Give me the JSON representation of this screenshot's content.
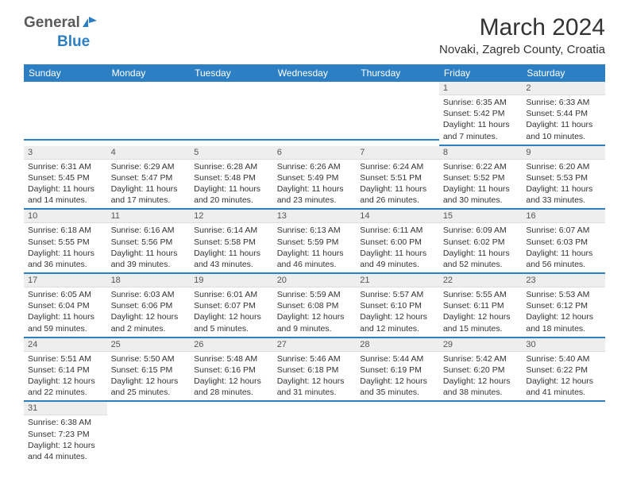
{
  "logo": {
    "part1": "General",
    "part2": "Blue"
  },
  "title": "March 2024",
  "location": "Novaki, Zagreb County, Croatia",
  "columns": [
    "Sunday",
    "Monday",
    "Tuesday",
    "Wednesday",
    "Thursday",
    "Friday",
    "Saturday"
  ],
  "colors": {
    "header_bg": "#2d7fc4",
    "header_text": "#ffffff",
    "daynum_bg": "#eeeeee",
    "cell_border": "#2d7fc4",
    "logo_gray": "#5a5a5a",
    "logo_blue": "#2d7fc4"
  },
  "weeks": [
    [
      null,
      null,
      null,
      null,
      null,
      {
        "num": "1",
        "sunrise": "6:35 AM",
        "sunset": "5:42 PM",
        "daylight": "11 hours and 7 minutes."
      },
      {
        "num": "2",
        "sunrise": "6:33 AM",
        "sunset": "5:44 PM",
        "daylight": "11 hours and 10 minutes."
      }
    ],
    [
      {
        "num": "3",
        "sunrise": "6:31 AM",
        "sunset": "5:45 PM",
        "daylight": "11 hours and 14 minutes."
      },
      {
        "num": "4",
        "sunrise": "6:29 AM",
        "sunset": "5:47 PM",
        "daylight": "11 hours and 17 minutes."
      },
      {
        "num": "5",
        "sunrise": "6:28 AM",
        "sunset": "5:48 PM",
        "daylight": "11 hours and 20 minutes."
      },
      {
        "num": "6",
        "sunrise": "6:26 AM",
        "sunset": "5:49 PM",
        "daylight": "11 hours and 23 minutes."
      },
      {
        "num": "7",
        "sunrise": "6:24 AM",
        "sunset": "5:51 PM",
        "daylight": "11 hours and 26 minutes."
      },
      {
        "num": "8",
        "sunrise": "6:22 AM",
        "sunset": "5:52 PM",
        "daylight": "11 hours and 30 minutes."
      },
      {
        "num": "9",
        "sunrise": "6:20 AM",
        "sunset": "5:53 PM",
        "daylight": "11 hours and 33 minutes."
      }
    ],
    [
      {
        "num": "10",
        "sunrise": "6:18 AM",
        "sunset": "5:55 PM",
        "daylight": "11 hours and 36 minutes."
      },
      {
        "num": "11",
        "sunrise": "6:16 AM",
        "sunset": "5:56 PM",
        "daylight": "11 hours and 39 minutes."
      },
      {
        "num": "12",
        "sunrise": "6:14 AM",
        "sunset": "5:58 PM",
        "daylight": "11 hours and 43 minutes."
      },
      {
        "num": "13",
        "sunrise": "6:13 AM",
        "sunset": "5:59 PM",
        "daylight": "11 hours and 46 minutes."
      },
      {
        "num": "14",
        "sunrise": "6:11 AM",
        "sunset": "6:00 PM",
        "daylight": "11 hours and 49 minutes."
      },
      {
        "num": "15",
        "sunrise": "6:09 AM",
        "sunset": "6:02 PM",
        "daylight": "11 hours and 52 minutes."
      },
      {
        "num": "16",
        "sunrise": "6:07 AM",
        "sunset": "6:03 PM",
        "daylight": "11 hours and 56 minutes."
      }
    ],
    [
      {
        "num": "17",
        "sunrise": "6:05 AM",
        "sunset": "6:04 PM",
        "daylight": "11 hours and 59 minutes."
      },
      {
        "num": "18",
        "sunrise": "6:03 AM",
        "sunset": "6:06 PM",
        "daylight": "12 hours and 2 minutes."
      },
      {
        "num": "19",
        "sunrise": "6:01 AM",
        "sunset": "6:07 PM",
        "daylight": "12 hours and 5 minutes."
      },
      {
        "num": "20",
        "sunrise": "5:59 AM",
        "sunset": "6:08 PM",
        "daylight": "12 hours and 9 minutes."
      },
      {
        "num": "21",
        "sunrise": "5:57 AM",
        "sunset": "6:10 PM",
        "daylight": "12 hours and 12 minutes."
      },
      {
        "num": "22",
        "sunrise": "5:55 AM",
        "sunset": "6:11 PM",
        "daylight": "12 hours and 15 minutes."
      },
      {
        "num": "23",
        "sunrise": "5:53 AM",
        "sunset": "6:12 PM",
        "daylight": "12 hours and 18 minutes."
      }
    ],
    [
      {
        "num": "24",
        "sunrise": "5:51 AM",
        "sunset": "6:14 PM",
        "daylight": "12 hours and 22 minutes."
      },
      {
        "num": "25",
        "sunrise": "5:50 AM",
        "sunset": "6:15 PM",
        "daylight": "12 hours and 25 minutes."
      },
      {
        "num": "26",
        "sunrise": "5:48 AM",
        "sunset": "6:16 PM",
        "daylight": "12 hours and 28 minutes."
      },
      {
        "num": "27",
        "sunrise": "5:46 AM",
        "sunset": "6:18 PM",
        "daylight": "12 hours and 31 minutes."
      },
      {
        "num": "28",
        "sunrise": "5:44 AM",
        "sunset": "6:19 PM",
        "daylight": "12 hours and 35 minutes."
      },
      {
        "num": "29",
        "sunrise": "5:42 AM",
        "sunset": "6:20 PM",
        "daylight": "12 hours and 38 minutes."
      },
      {
        "num": "30",
        "sunrise": "5:40 AM",
        "sunset": "6:22 PM",
        "daylight": "12 hours and 41 minutes."
      }
    ],
    [
      {
        "num": "31",
        "sunrise": "6:38 AM",
        "sunset": "7:23 PM",
        "daylight": "12 hours and 44 minutes."
      },
      null,
      null,
      null,
      null,
      null,
      null
    ]
  ],
  "labels": {
    "sunrise": "Sunrise: ",
    "sunset": "Sunset: ",
    "daylight": "Daylight: "
  }
}
